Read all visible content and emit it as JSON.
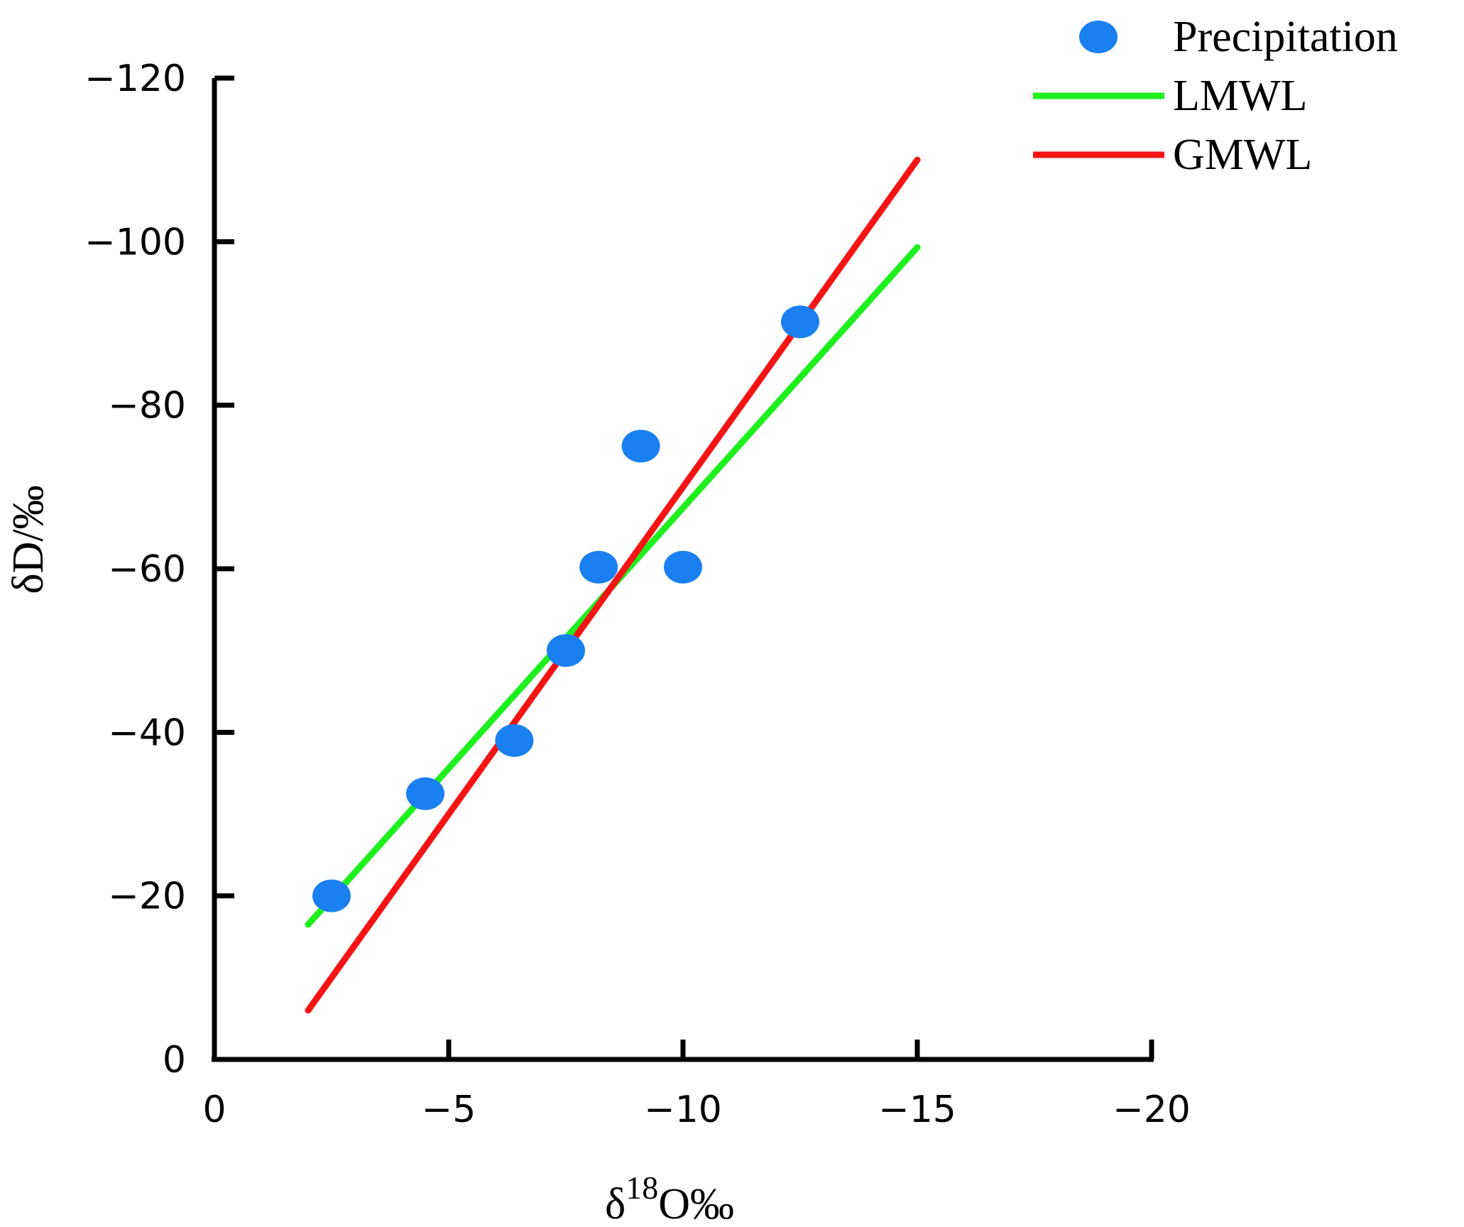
{
  "chart_data": {
    "type": "scatter",
    "title": "",
    "xlabel": {
      "prefix": "δ",
      "sup": "18",
      "suffix": "O‰"
    },
    "ylabel": "δD/‰",
    "xlim": [
      0,
      -20
    ],
    "ylim": [
      0,
      -120
    ],
    "x_ticks": [
      0,
      -5,
      -10,
      -15,
      -20
    ],
    "y_ticks": [
      0,
      -20,
      -40,
      -60,
      -80,
      -100,
      -120
    ],
    "x_tick_labels": [
      "0",
      "−5",
      "−10",
      "−15",
      "−20"
    ],
    "y_tick_labels": [
      "0",
      "−20",
      "−40",
      "−60",
      "−80",
      "−100",
      "−120"
    ],
    "legend_position": "top-right",
    "series": [
      {
        "name": "Precipitation",
        "kind": "scatter",
        "color": "#1a7ff0",
        "points": [
          {
            "x": -2.5,
            "y": -20
          },
          {
            "x": -4.5,
            "y": -32.5
          },
          {
            "x": -6.4,
            "y": -39
          },
          {
            "x": -7.5,
            "y": -50
          },
          {
            "x": -8.2,
            "y": -60.2
          },
          {
            "x": -9.1,
            "y": -75
          },
          {
            "x": -10.0,
            "y": -60.2
          },
          {
            "x": -12.5,
            "y": -90.2
          }
        ]
      },
      {
        "name": "LMWL",
        "kind": "line",
        "color": "#1ef01e",
        "points": [
          {
            "x": -2,
            "y": -16.5
          },
          {
            "x": -15,
            "y": -99.3
          }
        ]
      },
      {
        "name": "GMWL",
        "kind": "line",
        "color": "#f51414",
        "points": [
          {
            "x": -2,
            "y": -6
          },
          {
            "x": -15,
            "y": -110
          }
        ]
      }
    ]
  }
}
